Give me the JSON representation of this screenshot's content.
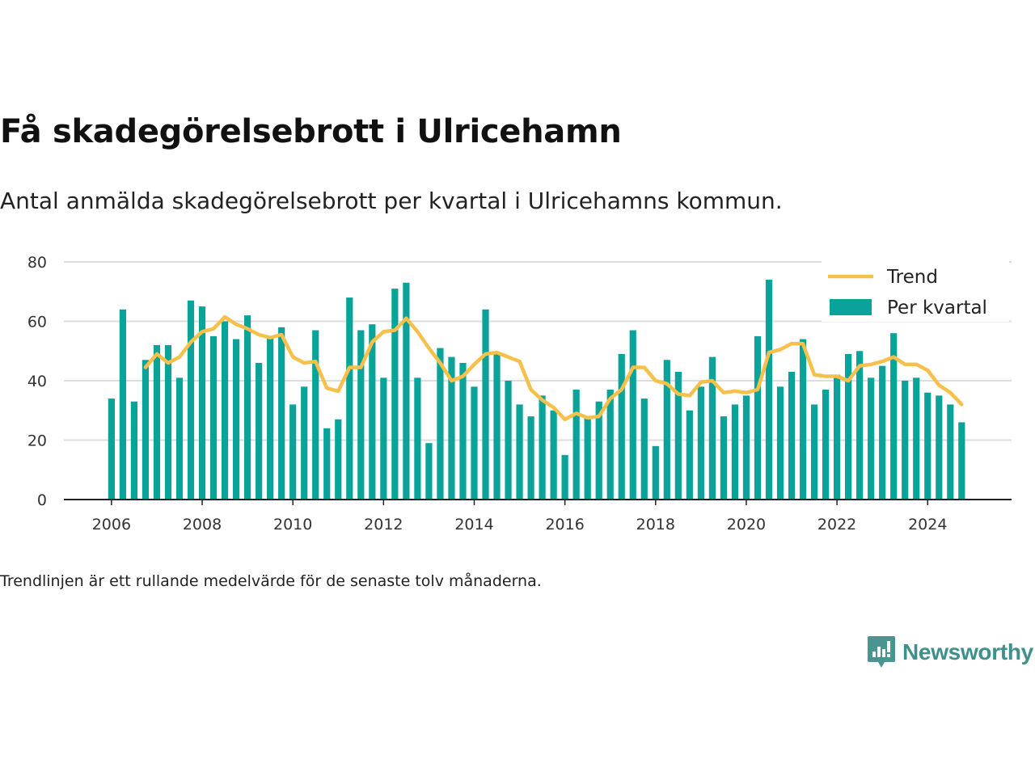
{
  "title": "Få skadegörelsebrott i Ulricehamn",
  "subtitle": "Antal anmälda skadegörelsebrott per kvartal i Ulricehamns kommun.",
  "note": "Trendlinjen är ett rullande medelvärde för de senaste tolv månaderna.",
  "brand": {
    "name": "Newsworthy",
    "icon": "newsworthy-logo-icon",
    "color": "#3f8f8a"
  },
  "chart_data": {
    "type": "bar",
    "x_start": 2006.0,
    "x_step": 0.25,
    "xlim": [
      2004.95,
      2025.85
    ],
    "ylim": [
      0,
      80
    ],
    "y_ticks": [
      0,
      20,
      40,
      60,
      80
    ],
    "x_ticks": [
      2006,
      2008,
      2010,
      2012,
      2014,
      2016,
      2018,
      2020,
      2022,
      2024
    ],
    "grid": true,
    "legend_position": "top-right",
    "colors": {
      "bars": "#0aa39a",
      "trend": "#f7c04a",
      "grid": "#dddddd",
      "axis": "#222222"
    },
    "series": [
      {
        "name": "Per kvartal",
        "kind": "bar",
        "values": [
          34,
          64,
          33,
          47,
          52,
          52,
          41,
          67,
          65,
          55,
          60,
          54,
          62,
          46,
          55,
          58,
          32,
          38,
          57,
          24,
          27,
          68,
          57,
          59,
          41,
          71,
          73,
          41,
          19,
          51,
          48,
          46,
          38,
          64,
          49,
          40,
          32,
          28,
          35,
          30,
          15,
          37,
          28,
          33,
          37,
          49,
          57,
          34,
          18,
          47,
          43,
          30,
          38,
          48,
          28,
          32,
          35,
          55,
          74,
          38,
          43,
          54,
          32,
          37,
          42,
          49,
          50,
          41,
          45,
          56,
          40,
          41,
          36,
          35,
          32,
          26
        ]
      },
      {
        "name": "Trend",
        "kind": "line",
        "start_index": 3,
        "values": [
          44.5,
          49,
          46,
          48,
          53,
          56.5,
          57.5,
          61.5,
          59,
          57.5,
          55.5,
          54.5,
          55.5,
          48,
          46,
          46.5,
          37.5,
          36.5,
          44.5,
          44.5,
          53,
          56.5,
          57,
          61,
          56.5,
          51,
          46,
          40,
          41.5,
          45.5,
          49,
          49.5,
          48,
          46.5,
          37,
          33.5,
          31,
          27,
          29,
          27.5,
          28,
          34,
          37,
          44.5,
          44.5,
          40,
          39,
          35.5,
          35,
          39.5,
          40,
          36,
          36.5,
          36,
          37,
          49.5,
          50.5,
          52.5,
          52.5,
          42,
          41.5,
          41.5,
          40,
          45,
          45.5,
          46.5,
          48,
          45.5,
          45.5,
          43.5,
          38.5,
          36,
          32
        ]
      }
    ]
  }
}
